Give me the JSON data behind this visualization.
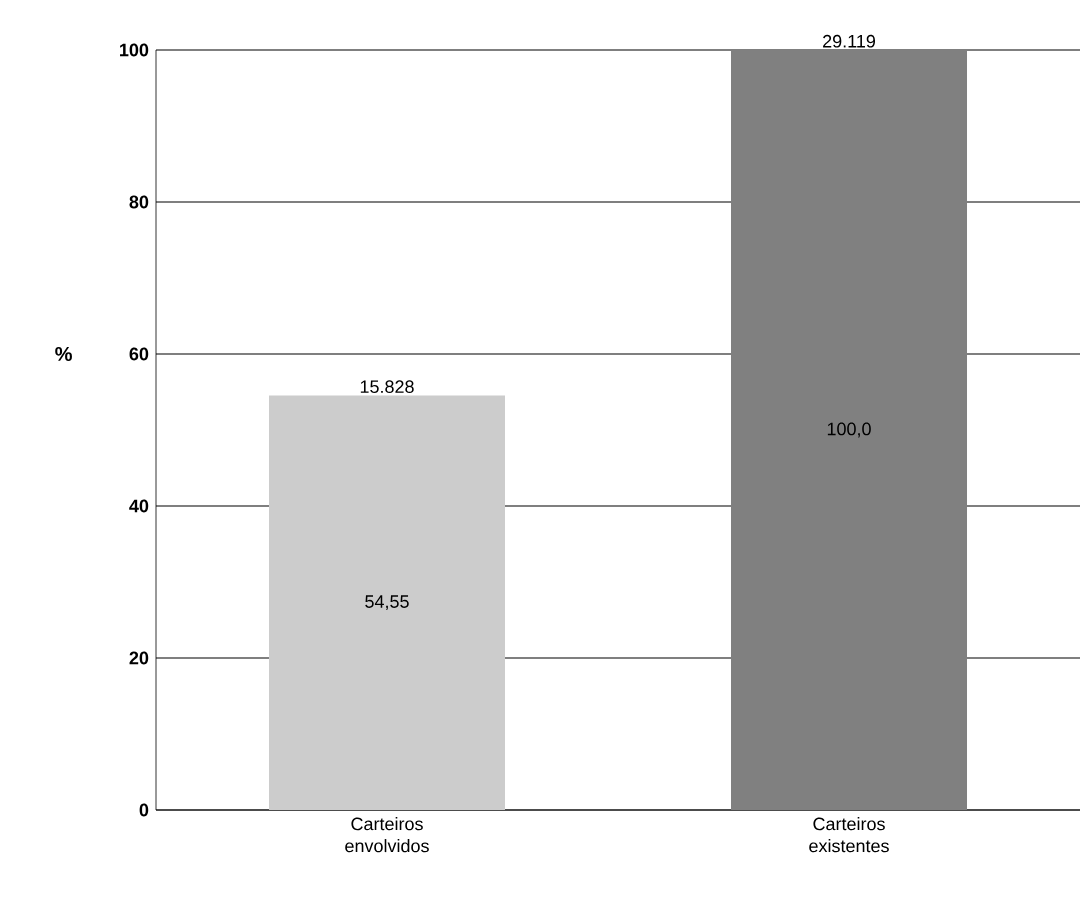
{
  "chart_data": {
    "type": "bar",
    "ylabel": "%",
    "categories": [
      "Carteiros envolvidos",
      "Carteiros existentes"
    ],
    "values": [
      54.55,
      100.0
    ],
    "colors": [
      "#cccccc",
      "#808080"
    ],
    "value_labels": [
      "54,55",
      "100,0"
    ],
    "annotations": [
      {
        "text": "15.828",
        "x": "Carteiros envolvidos",
        "y": 54.55
      },
      {
        "text": "29.119",
        "x": "Carteiros existentes",
        "y": 100.0
      }
    ],
    "ylim": [
      0,
      100
    ],
    "yticks": [
      0,
      20,
      40,
      60,
      80,
      100
    ],
    "grid": "y"
  }
}
